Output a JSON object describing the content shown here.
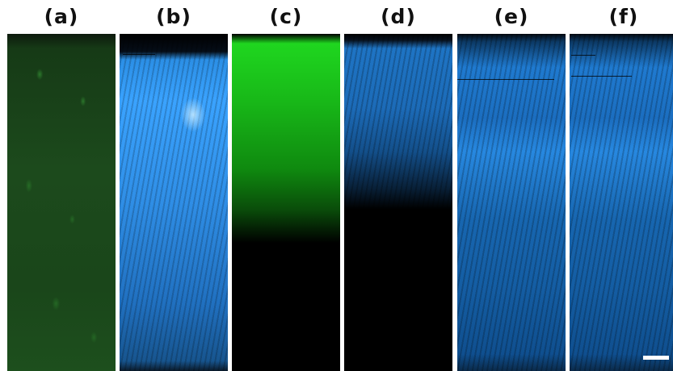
{
  "figure": {
    "panels": [
      {
        "label": "(a)",
        "color_theme": "green",
        "colors": [
          "#1c4a1c",
          "#3caa3c"
        ]
      },
      {
        "label": "(b)",
        "color_theme": "blue",
        "colors": [
          "#2f8ee6",
          "#c8ebff"
        ]
      },
      {
        "label": "(c)",
        "color_theme": "green",
        "colors": [
          "#1fd61f",
          "#000000"
        ]
      },
      {
        "label": "(d)",
        "color_theme": "blue",
        "colors": [
          "#1e74c4",
          "#000000"
        ]
      },
      {
        "label": "(e)",
        "color_theme": "blue",
        "colors": [
          "#1f7ad0",
          "#0f4f8f"
        ]
      },
      {
        "label": "(f)",
        "color_theme": "blue",
        "colors": [
          "#1f7ad0",
          "#0f4f8f"
        ]
      }
    ],
    "scale_bar": {
      "color": "#ffffff"
    },
    "background": "#ffffff"
  }
}
